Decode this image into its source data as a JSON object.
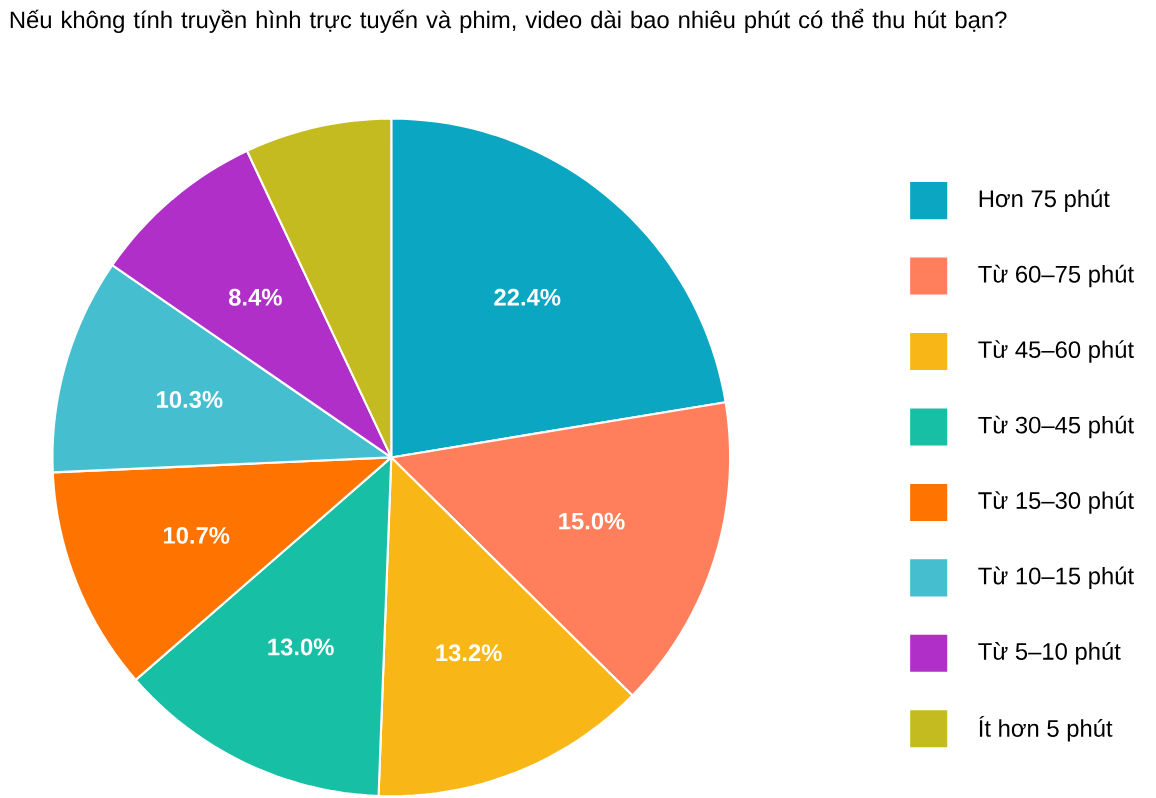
{
  "chart_data": {
    "type": "pie",
    "title": "Nếu không tính truyền hình trực tuyến và phim, video dài bao nhiêu phút có thể thu hút bạn?",
    "categories": [
      "Hơn 75 phút",
      "Từ 60–75 phút",
      "Từ 45–60 phút",
      "Từ 30–45 phút",
      "Từ 15–30 phút",
      "Từ 10–15 phút",
      "Từ 5–10 phút",
      "Ít hơn 5 phút"
    ],
    "values": [
      22.4,
      15.0,
      13.2,
      13.0,
      10.7,
      10.3,
      8.4,
      7.0
    ],
    "value_labels": [
      "22.4%",
      "15.0%",
      "13.2%",
      "13.0%",
      "10.7%",
      "10.3%",
      "8.4%",
      null
    ],
    "colors": [
      "#0aa6c2",
      "#ff7f5c",
      "#f8b716",
      "#17bfa5",
      "#ff7300",
      "#45bfd0",
      "#b12fc9",
      "#c4bb20"
    ],
    "legend": "right"
  }
}
